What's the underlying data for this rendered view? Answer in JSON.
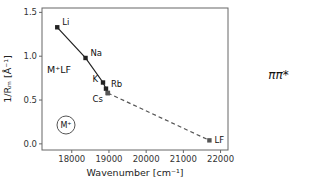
{
  "chart_data": {
    "type": "line",
    "xlabel": "Wavenumber [cm⁻¹]",
    "ylabel": "1/Rₘ [Å⁻¹]",
    "x": [
      17610,
      18370,
      18840,
      18920,
      18970
    ],
    "series": [
      {
        "values": [
          1.33,
          0.98,
          0.7,
          0.63,
          0.58
        ],
        "color": "#222222",
        "marker": "square",
        "line_style": "solid",
        "labels": [
          "Li",
          "Na",
          "K",
          "Rb",
          "Cs"
        ]
      },
      {
        "x": [
          18970,
          21700
        ],
        "values": [
          0.58,
          0.04
        ],
        "color": "#555555",
        "marker": "square",
        "line_style": "dashed",
        "labels": [
          null,
          "LF"
        ]
      }
    ],
    "annotations": [
      {
        "text": "M⁺LF"
      },
      {
        "text": "M⁺"
      },
      {
        "text": "ππ*"
      }
    ],
    "xlim": [
      17200,
      22200
    ],
    "ylim": [
      -0.07,
      1.55
    ],
    "xticks": [
      18000,
      19000,
      20000,
      21000,
      22000
    ],
    "yticks": [
      {
        "value": 0.0,
        "label": "0.0"
      },
      0.5,
      {
        "value": 1.0,
        "label": "1.0"
      },
      1.5
    ],
    "grid": false
  }
}
